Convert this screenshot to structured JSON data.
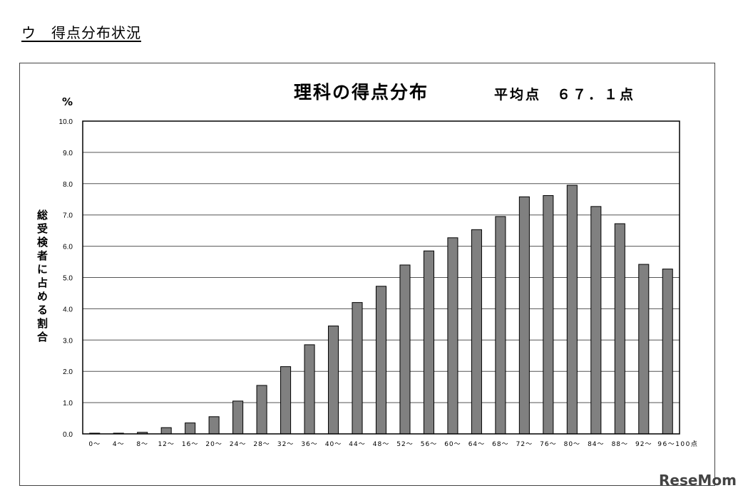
{
  "heading": "ウ　得点分布状況",
  "watermark": "ReseMom",
  "chart_data": {
    "type": "bar",
    "title": "理科の得点分布",
    "subtitle": "平均点　６７．１点",
    "unit_label": "%",
    "ylabel": "総受検者に占める割合",
    "xlabel": "",
    "ylim": [
      0,
      10
    ],
    "ytick_labels": [
      "0.0",
      "1.0",
      "2.0",
      "3.0",
      "4.0",
      "5.0",
      "6.0",
      "7.0",
      "8.0",
      "9.0",
      "10.0"
    ],
    "categories": [
      "0～",
      "4～",
      "8～",
      "12～",
      "16～",
      "20～",
      "24～",
      "28～",
      "32～",
      "36～",
      "40～",
      "44～",
      "48～",
      "52～",
      "56～",
      "60～",
      "64～",
      "68～",
      "72～",
      "76～",
      "80～",
      "84～",
      "88～",
      "92～",
      "96～100点"
    ],
    "values": [
      0.0,
      0.0,
      0.05,
      0.2,
      0.35,
      0.55,
      1.05,
      1.55,
      2.15,
      2.85,
      3.45,
      4.2,
      4.72,
      5.4,
      5.85,
      6.27,
      6.53,
      6.95,
      7.58,
      7.62,
      7.95,
      7.27,
      6.72,
      5.42,
      5.27
    ],
    "grid": true,
    "legend": "none",
    "bar_color": "#808080"
  }
}
